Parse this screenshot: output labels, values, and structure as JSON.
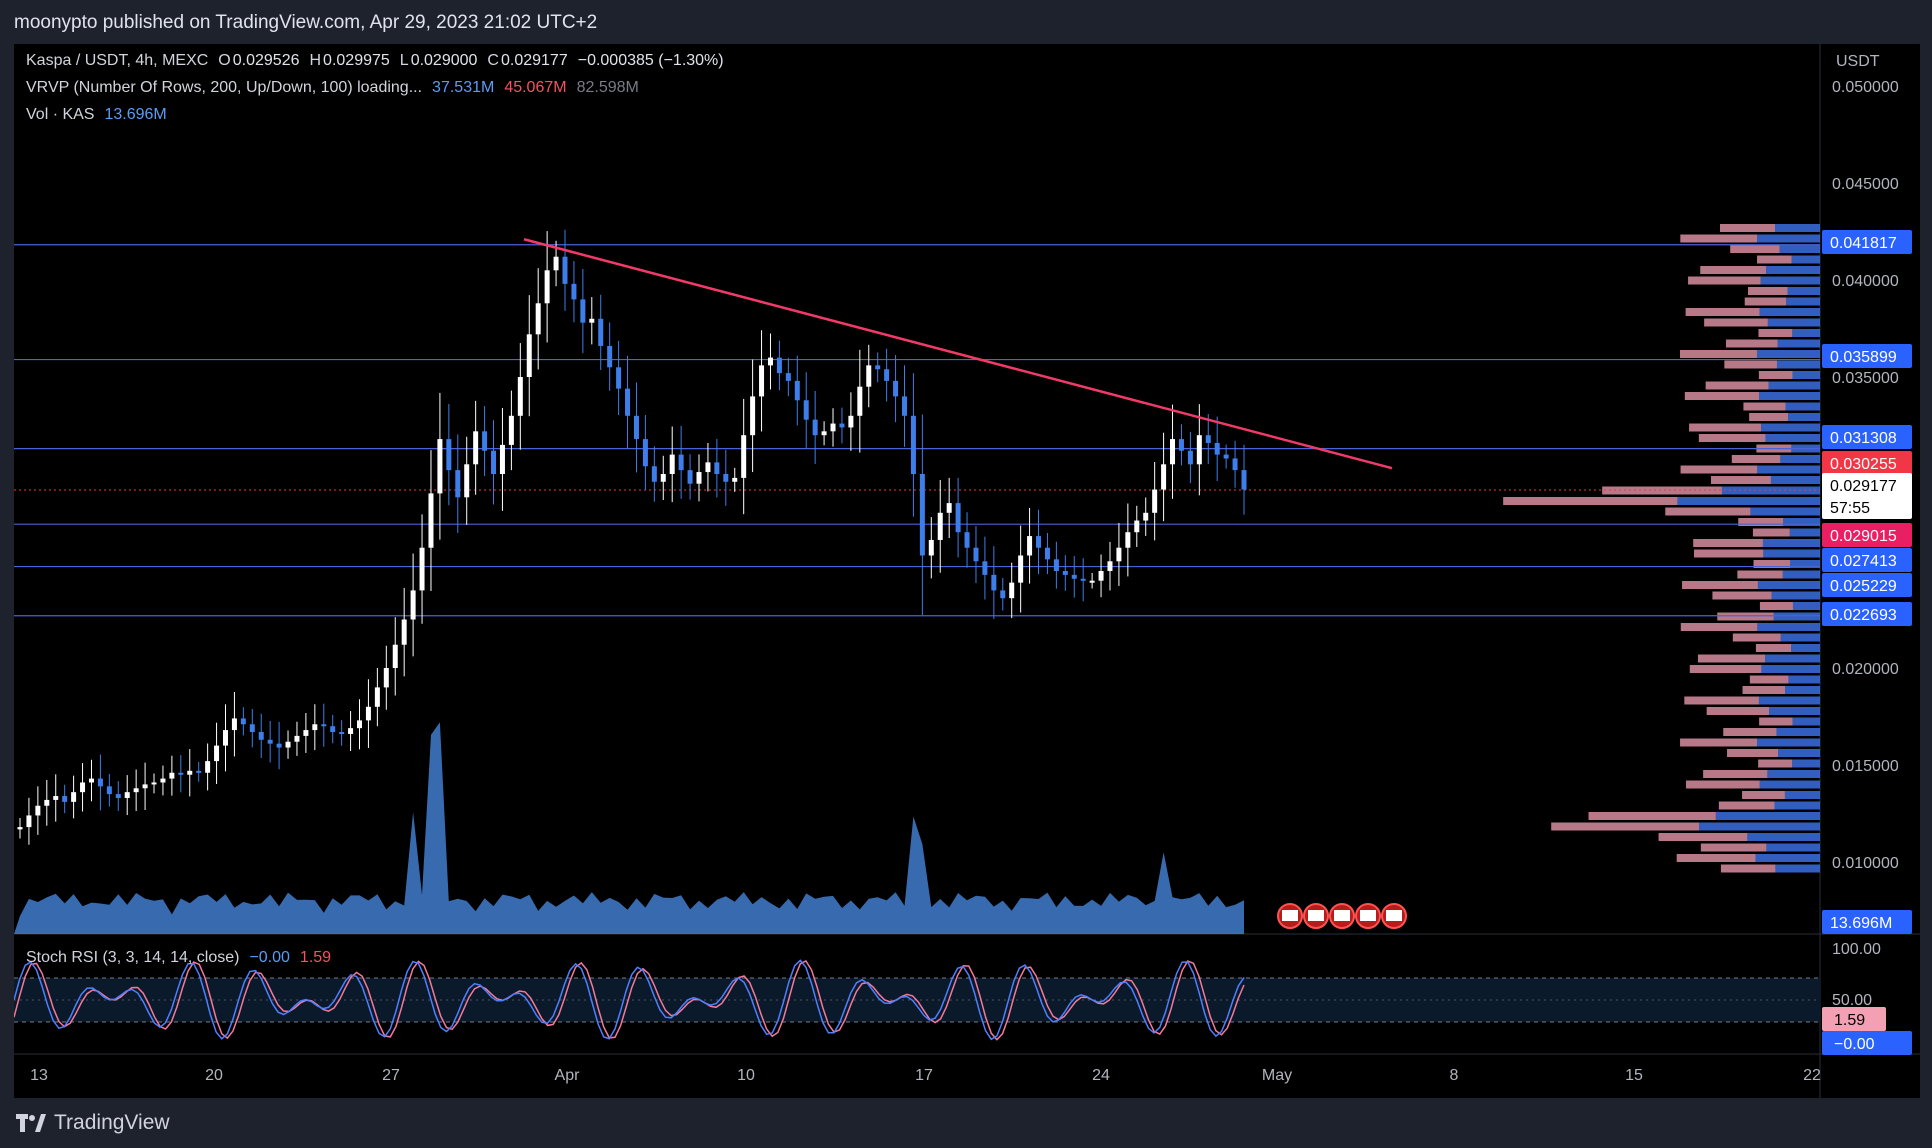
{
  "header": {
    "published": "moonypto published on TradingView.com, Apr 29, 2023 21:02 UTC+2"
  },
  "legend": {
    "symbol": "Kaspa / USDT, 4h, MEXC",
    "o_label": "O",
    "o": "0.029526",
    "h_label": "H",
    "h": "0.029975",
    "l_label": "L",
    "l": "0.029000",
    "c_label": "C",
    "c": "0.029177",
    "change": "−0.000385 (−1.30%)",
    "vrvp": "VRVP (Number Of Rows, 200, Up/Down, 100) loading...",
    "vrvp_up": "37.531M",
    "vrvp_down": "45.067M",
    "vrvp_total": "82.598M",
    "vol": "Vol · KAS",
    "vol_value": "13.696M",
    "stoch": "Stoch RSI (3, 3, 14, 14, close)",
    "stoch_k": "−0.00",
    "stoch_d": "1.59"
  },
  "colors": {
    "background": "#000000",
    "panel": "#1e222d",
    "up": "#ffffff",
    "down": "#3d7eea",
    "trendline": "#f23a6a",
    "level": "#4a63d6",
    "vol_fill": "#4a8ee8",
    "vrvp_up": "#3a6fe0",
    "vrvp_down": "#f4a0b4"
  },
  "chart_data": {
    "type": "candlestick",
    "price_axis": {
      "unit": "USDT",
      "ticks": [
        "0.050000",
        "0.045000",
        "0.040000",
        "0.035000",
        "0.020000",
        "0.015000",
        "0.010000"
      ],
      "tick_values": [
        0.05,
        0.045,
        0.04,
        0.035,
        0.02,
        0.015,
        0.01
      ]
    },
    "time_axis": {
      "labels": [
        "13",
        "20",
        "27",
        "Apr",
        "10",
        "17",
        "24",
        "May",
        "8",
        "15",
        "22"
      ]
    },
    "close_series": [
      0.0118,
      0.0124,
      0.0129,
      0.0132,
      0.0134,
      0.0131,
      0.0136,
      0.0141,
      0.0143,
      0.0139,
      0.0135,
      0.0133,
      0.0136,
      0.0138,
      0.014,
      0.0141,
      0.0143,
      0.0146,
      0.0145,
      0.0147,
      0.0146,
      0.0152,
      0.016,
      0.0168,
      0.0174,
      0.0171,
      0.0167,
      0.0163,
      0.0161,
      0.0159,
      0.0162,
      0.0165,
      0.0168,
      0.0171,
      0.017,
      0.0167,
      0.0166,
      0.0169,
      0.0173,
      0.018,
      0.019,
      0.02,
      0.0212,
      0.0225,
      0.024,
      0.0262,
      0.029,
      0.0318,
      0.0302,
      0.0288,
      0.0305,
      0.0322,
      0.0312,
      0.03,
      0.0315,
      0.033,
      0.035,
      0.0372,
      0.0388,
      0.0405,
      0.0412,
      0.0398,
      0.039,
      0.0378,
      0.038,
      0.0366,
      0.0355,
      0.0344,
      0.033,
      0.0318,
      0.0304,
      0.0296,
      0.03,
      0.031,
      0.0302,
      0.0295,
      0.0301,
      0.0306,
      0.03,
      0.0296,
      0.0298,
      0.032,
      0.034,
      0.0356,
      0.036,
      0.0352,
      0.0348,
      0.0338,
      0.0328,
      0.032,
      0.0322,
      0.0326,
      0.0324,
      0.033,
      0.0345,
      0.0356,
      0.0354,
      0.0348,
      0.034,
      0.033,
      0.03,
      0.0258,
      0.0266,
      0.028,
      0.0285,
      0.027,
      0.0262,
      0.0255,
      0.0248,
      0.024,
      0.0236,
      0.0244,
      0.0258,
      0.0268,
      0.0262,
      0.0256,
      0.025,
      0.0248,
      0.0246,
      0.0245,
      0.0245,
      0.025,
      0.0255,
      0.0262,
      0.027,
      0.0276,
      0.028,
      0.0292,
      0.0305,
      0.0318,
      0.0312,
      0.0305,
      0.032,
      0.0316,
      0.031,
      0.0308,
      0.0302,
      0.0292
    ],
    "high_low": {
      "period_high": 0.0422,
      "period_low": 0.0112,
      "candle_high_date": "Apr 2",
      "low_after_drop_date": "Apr 17"
    },
    "volume_peaks_M": [
      18,
      22,
      16,
      28,
      24,
      20,
      22,
      30
    ],
    "volume_current": "13.696M",
    "horizontal_levels": [
      0.041817,
      0.035899,
      0.031308,
      0.027413,
      0.025229,
      0.022693
    ],
    "price_tags": [
      {
        "value": "0.041817",
        "bg": "#2962ff",
        "fg": "#ffffff"
      },
      {
        "value": "0.035899",
        "bg": "#2962ff",
        "fg": "#ffffff"
      },
      {
        "value": "0.031308",
        "bg": "#2962ff",
        "fg": "#ffffff"
      },
      {
        "value": "0.030255",
        "bg": "#f23645",
        "fg": "#ffffff"
      },
      {
        "value": "0.029177",
        "bg": "#ffffff",
        "fg": "#000000",
        "sub": "57:55"
      },
      {
        "value": "0.029015",
        "bg": "#e91e63",
        "fg": "#ffffff"
      },
      {
        "value": "0.027413",
        "bg": "#2962ff",
        "fg": "#ffffff"
      },
      {
        "value": "0.025229",
        "bg": "#2962ff",
        "fg": "#ffffff"
      },
      {
        "value": "0.022693",
        "bg": "#2962ff",
        "fg": "#ffffff"
      }
    ],
    "trendline": {
      "from": {
        "date": "Apr 1",
        "price": 0.0421
      },
      "to": {
        "date": "May 6",
        "price": 0.0303
      }
    },
    "current_price": 0.029177,
    "stoch_rsi": {
      "axis_ticks": [
        "100.00",
        "50.00"
      ],
      "k": "−0.00",
      "d": "1.59",
      "upper_band": 80,
      "lower_band": 20
    }
  },
  "footer": {
    "brand": "TradingView"
  }
}
